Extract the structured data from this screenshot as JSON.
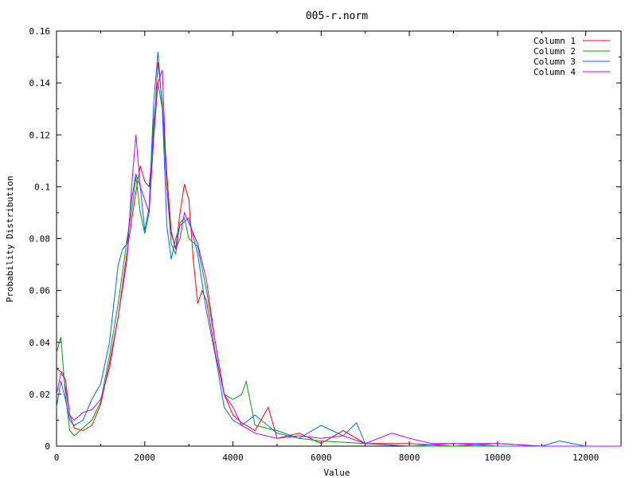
{
  "chart_data": {
    "type": "line",
    "title": "005-r.norm",
    "xlabel": "Value",
    "ylabel": "Probability Distribution",
    "xlim": [
      0,
      12800
    ],
    "ylim": [
      0,
      0.16
    ],
    "x_ticks": [
      0,
      2000,
      4000,
      6000,
      8000,
      10000,
      12000
    ],
    "y_ticks": [
      "0",
      "0.02",
      "0.04",
      "0.06",
      "0.08",
      "0.1",
      "0.12",
      "0.14",
      "0.16"
    ],
    "legend_position": "top-right",
    "series": [
      {
        "name": "Column 1",
        "color": "#ff0000",
        "points": [
          [
            0,
            0.03
          ],
          [
            150,
            0.028
          ],
          [
            300,
            0.012
          ],
          [
            400,
            0.007
          ],
          [
            600,
            0.006
          ],
          [
            800,
            0.008
          ],
          [
            1000,
            0.016
          ],
          [
            1200,
            0.032
          ],
          [
            1400,
            0.05
          ],
          [
            1600,
            0.075
          ],
          [
            1800,
            0.098
          ],
          [
            1900,
            0.108
          ],
          [
            2000,
            0.102
          ],
          [
            2100,
            0.1
          ],
          [
            2200,
            0.12
          ],
          [
            2300,
            0.148
          ],
          [
            2400,
            0.132
          ],
          [
            2500,
            0.105
          ],
          [
            2600,
            0.083
          ],
          [
            2700,
            0.076
          ],
          [
            2800,
            0.09
          ],
          [
            2900,
            0.101
          ],
          [
            3000,
            0.095
          ],
          [
            3100,
            0.072
          ],
          [
            3200,
            0.055
          ],
          [
            3300,
            0.06
          ],
          [
            3400,
            0.056
          ],
          [
            3600,
            0.036
          ],
          [
            3800,
            0.02
          ],
          [
            4000,
            0.012
          ],
          [
            4200,
            0.009
          ],
          [
            4500,
            0.006
          ],
          [
            4800,
            0.015
          ],
          [
            5000,
            0.003
          ],
          [
            5500,
            0.005
          ],
          [
            6000,
            0.001
          ],
          [
            6500,
            0.006
          ],
          [
            7000,
            0.001
          ],
          [
            8000,
            0.001
          ],
          [
            9000,
            0.0
          ],
          [
            10000,
            0.001
          ],
          [
            11000,
            0.0
          ],
          [
            12000,
            0.0
          ],
          [
            12800,
            0.0
          ]
        ]
      },
      {
        "name": "Column 2",
        "color": "#00a000",
        "points": [
          [
            0,
            0.036
          ],
          [
            100,
            0.042
          ],
          [
            200,
            0.02
          ],
          [
            300,
            0.006
          ],
          [
            400,
            0.004
          ],
          [
            600,
            0.007
          ],
          [
            800,
            0.01
          ],
          [
            1000,
            0.017
          ],
          [
            1200,
            0.035
          ],
          [
            1400,
            0.055
          ],
          [
            1600,
            0.08
          ],
          [
            1700,
            0.09
          ],
          [
            1800,
            0.104
          ],
          [
            1900,
            0.09
          ],
          [
            2000,
            0.082
          ],
          [
            2100,
            0.09
          ],
          [
            2200,
            0.125
          ],
          [
            2300,
            0.14
          ],
          [
            2400,
            0.13
          ],
          [
            2500,
            0.1
          ],
          [
            2600,
            0.078
          ],
          [
            2700,
            0.074
          ],
          [
            2800,
            0.086
          ],
          [
            2900,
            0.088
          ],
          [
            3000,
            0.08
          ],
          [
            3200,
            0.077
          ],
          [
            3400,
            0.06
          ],
          [
            3600,
            0.04
          ],
          [
            3800,
            0.02
          ],
          [
            4000,
            0.018
          ],
          [
            4200,
            0.02
          ],
          [
            4300,
            0.025
          ],
          [
            4500,
            0.008
          ],
          [
            5000,
            0.006
          ],
          [
            5500,
            0.003
          ],
          [
            6000,
            0.002
          ],
          [
            7000,
            0.001
          ],
          [
            8000,
            0.0
          ],
          [
            9000,
            0.0
          ],
          [
            10000,
            0.0
          ],
          [
            11000,
            0.0
          ],
          [
            12000,
            0.0
          ],
          [
            12800,
            0.0
          ]
        ]
      },
      {
        "name": "Column 3",
        "color": "#0066ff",
        "points": [
          [
            0,
            0.015
          ],
          [
            100,
            0.025
          ],
          [
            200,
            0.018
          ],
          [
            300,
            0.01
          ],
          [
            400,
            0.008
          ],
          [
            600,
            0.01
          ],
          [
            800,
            0.018
          ],
          [
            1000,
            0.024
          ],
          [
            1200,
            0.04
          ],
          [
            1400,
            0.07
          ],
          [
            1500,
            0.076
          ],
          [
            1600,
            0.078
          ],
          [
            1700,
            0.095
          ],
          [
            1800,
            0.105
          ],
          [
            1900,
            0.1
          ],
          [
            2000,
            0.083
          ],
          [
            2100,
            0.092
          ],
          [
            2200,
            0.132
          ],
          [
            2300,
            0.152
          ],
          [
            2400,
            0.13
          ],
          [
            2500,
            0.085
          ],
          [
            2600,
            0.072
          ],
          [
            2700,
            0.08
          ],
          [
            2800,
            0.085
          ],
          [
            3000,
            0.088
          ],
          [
            3200,
            0.074
          ],
          [
            3400,
            0.052
          ],
          [
            3600,
            0.035
          ],
          [
            3800,
            0.015
          ],
          [
            4000,
            0.01
          ],
          [
            4200,
            0.008
          ],
          [
            4500,
            0.012
          ],
          [
            5000,
            0.005
          ],
          [
            5500,
            0.003
          ],
          [
            6000,
            0.008
          ],
          [
            6500,
            0.004
          ],
          [
            6800,
            0.009
          ],
          [
            7000,
            0.001
          ],
          [
            8000,
            0.0
          ],
          [
            9000,
            0.001
          ],
          [
            10000,
            0.0
          ],
          [
            11000,
            0.0
          ],
          [
            11400,
            0.002
          ],
          [
            12000,
            0.0
          ],
          [
            12800,
            0.0
          ]
        ]
      },
      {
        "name": "Column 4",
        "color": "#c000ff",
        "points": [
          [
            0,
            0.02
          ],
          [
            100,
            0.028
          ],
          [
            200,
            0.026
          ],
          [
            300,
            0.012
          ],
          [
            400,
            0.01
          ],
          [
            600,
            0.013
          ],
          [
            800,
            0.014
          ],
          [
            1000,
            0.018
          ],
          [
            1200,
            0.03
          ],
          [
            1400,
            0.05
          ],
          [
            1600,
            0.072
          ],
          [
            1700,
            0.1
          ],
          [
            1800,
            0.12
          ],
          [
            1900,
            0.1
          ],
          [
            2000,
            0.095
          ],
          [
            2100,
            0.09
          ],
          [
            2200,
            0.118
          ],
          [
            2300,
            0.14
          ],
          [
            2400,
            0.145
          ],
          [
            2500,
            0.1
          ],
          [
            2600,
            0.082
          ],
          [
            2700,
            0.076
          ],
          [
            2800,
            0.08
          ],
          [
            2900,
            0.09
          ],
          [
            3000,
            0.086
          ],
          [
            3200,
            0.078
          ],
          [
            3400,
            0.064
          ],
          [
            3600,
            0.04
          ],
          [
            3800,
            0.02
          ],
          [
            4000,
            0.015
          ],
          [
            4200,
            0.008
          ],
          [
            4500,
            0.005
          ],
          [
            5000,
            0.003
          ],
          [
            5500,
            0.004
          ],
          [
            6000,
            0.003
          ],
          [
            6500,
            0.004
          ],
          [
            7000,
            0.001
          ],
          [
            7600,
            0.005
          ],
          [
            8000,
            0.003
          ],
          [
            8500,
            0.001
          ],
          [
            9000,
            0.001
          ],
          [
            10000,
            0.001
          ],
          [
            11000,
            0.0
          ],
          [
            12000,
            0.0
          ],
          [
            12800,
            0.0
          ]
        ]
      }
    ]
  }
}
